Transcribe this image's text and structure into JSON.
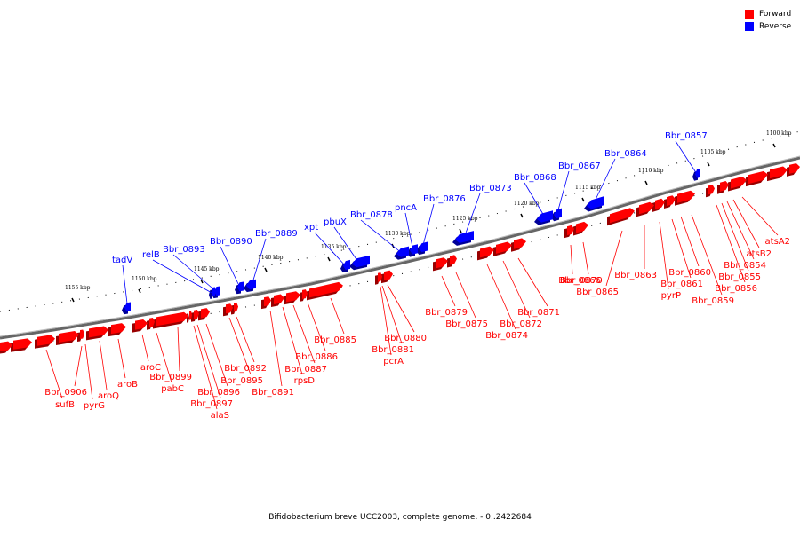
{
  "legend": {
    "items": [
      {
        "label": "Forward",
        "color": "#ff0000"
      },
      {
        "label": "Reverse",
        "color": "#0000ff"
      }
    ]
  },
  "caption": "Bifidobacterium breve UCC2003, complete genome. - 0..2422684",
  "colors": {
    "forward": "#ff0000",
    "reverse": "#0000ff",
    "backbone": "#666666"
  },
  "ticks": [
    "1100 kbp",
    "1105 kbp",
    "1110 kbp",
    "1115 kbp",
    "1120 kbp",
    "1125 kbp",
    "1130 kbp",
    "1135 kbp",
    "1140 kbp",
    "1145 kbp",
    "1150 kbp",
    "1155 kbp"
  ],
  "reverse_genes": [
    "Bbr_0857",
    "Bbr_0864",
    "Bbr_0867",
    "Bbr_0868",
    "Bbr_0873",
    "Bbr_0876",
    "pncA",
    "Bbr_0878",
    "pbuX",
    "xpt",
    "Bbr_0889",
    "Bbr_0890",
    "Bbr_0893",
    "relB",
    "tadV"
  ],
  "forward_genes": [
    "atsA2",
    "atsB2",
    "Bbr_0854",
    "Bbr_0855",
    "Bbr_0856",
    "Bbr_0859",
    "Bbr_0860",
    "Bbr_0861",
    "pyrP",
    "Bbr_0863",
    "Bbr_0865",
    "Bbr_0866",
    "Bbr_0870",
    "Bbr_0871",
    "Bbr_0872",
    "Bbr_0874",
    "Bbr_0875",
    "Bbr_0879",
    "Bbr_0880",
    "Bbr_0881",
    "pcrA",
    "Bbr_0885",
    "Bbr_0886",
    "Bbr_0887",
    "rpsD",
    "Bbr_0891",
    "Bbr_0892",
    "Bbr_0895",
    "Bbr_0896",
    "Bbr_0897",
    "alaS",
    "Bbr_0899",
    "pabC",
    "aroC",
    "aroB",
    "aroQ",
    "pyrG",
    "Bbr_0906",
    "sufB"
  ]
}
